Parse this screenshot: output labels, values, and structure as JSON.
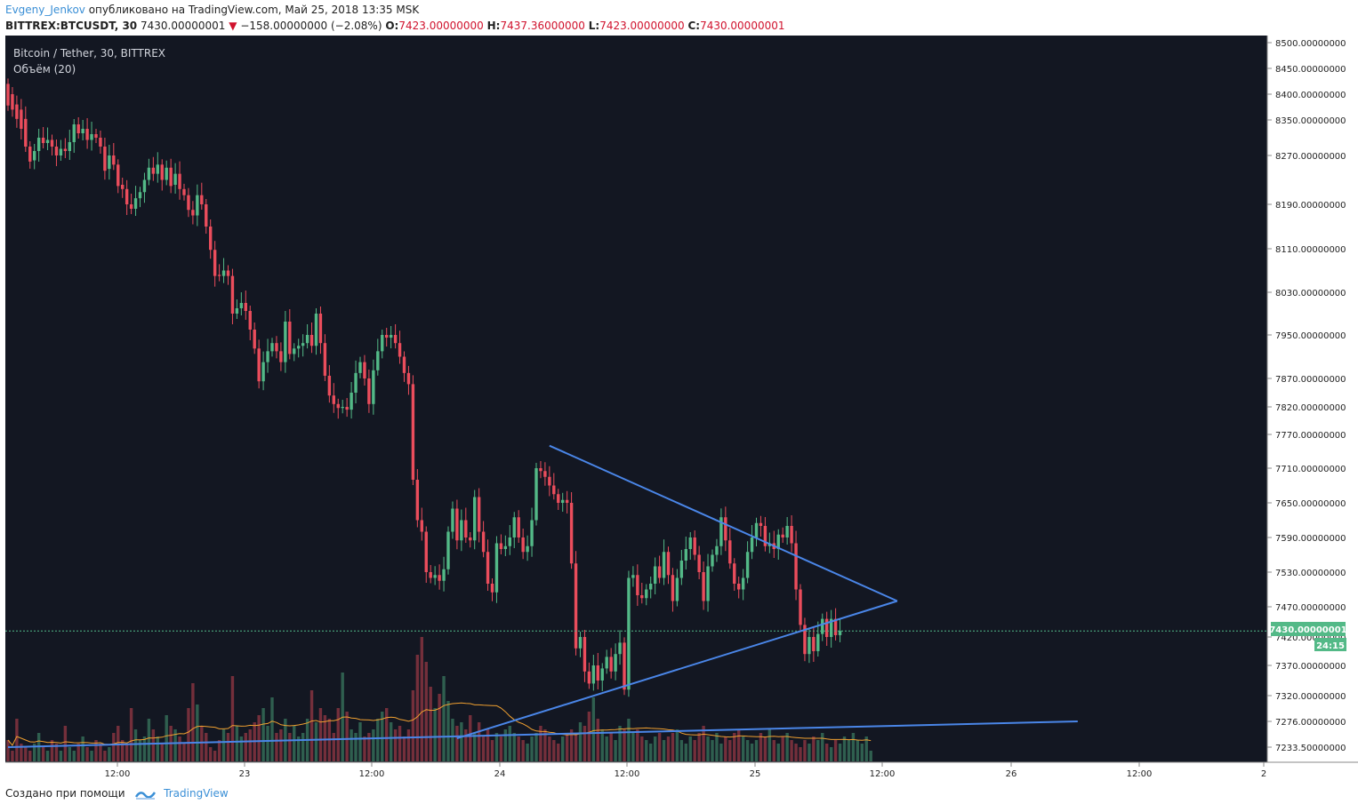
{
  "header": {
    "user": "Evgeny_Jenkov",
    "published": "опубликовано на TradingView.com, Май 25, 2018 13:35 MSK",
    "symbol": "BITTREX:BTCUSDT, 30",
    "last": "7430.00000001",
    "change": "−158.00000000 (−2.08%)",
    "o_label": "O:",
    "o_value": "7423.00000000",
    "h_label": "H:",
    "h_value": "7437.36000000",
    "l_label": "L:",
    "l_value": "7423.00000000",
    "c_label": "C:",
    "c_value": "7430.00000001"
  },
  "legend": {
    "title": "Bitcoin / Tether, 30, BITTREX",
    "volume": "Объём (20)"
  },
  "price_badge": "7430.00000001",
  "countdown": "24:15",
  "footer": {
    "created": "Создано при помощи",
    "brand": "TradingView"
  },
  "colors": {
    "background": "#131722",
    "up": "#53b987",
    "down": "#eb4d5c",
    "trendline": "#4a86e8",
    "volume_ma": "#f0a030",
    "price_line": "#53b987"
  },
  "chart_data": {
    "type": "candlestick",
    "y_axis_ticks": [
      "8500.00000000",
      "8450.00000000",
      "8400.00000000",
      "8350.00000000",
      "8270.00000000",
      "8190.00000000",
      "8110.00000000",
      "8030.00000000",
      "7950.00000000",
      "7870.00000000",
      "7820.00000000",
      "7770.00000000",
      "7710.00000000",
      "7650.00000000",
      "7590.00000000",
      "7530.00000000",
      "7470.00000000",
      "7420.00000000",
      "7370.00000000",
      "7320.00000000",
      "7276.00000000",
      "7233.50000000"
    ],
    "x_axis_ticks": [
      "12:00",
      "23",
      "12:00",
      "24",
      "12:00",
      "25",
      "12:00",
      "26",
      "12:00",
      "2"
    ],
    "last_price": 7430.00000001,
    "candles": [
      {
        "o": 8420,
        "c": 8378
      },
      {
        "o": 8400,
        "c": 8370
      },
      {
        "o": 8380,
        "c": 8352
      },
      {
        "o": 8370,
        "c": 8330
      },
      {
        "o": 8352,
        "c": 8290
      },
      {
        "o": 8290,
        "c": 8260
      },
      {
        "o": 8262,
        "c": 8280
      },
      {
        "o": 8280,
        "c": 8310
      },
      {
        "o": 8310,
        "c": 8298
      },
      {
        "o": 8298,
        "c": 8305
      },
      {
        "o": 8305,
        "c": 8290
      },
      {
        "o": 8290,
        "c": 8270
      },
      {
        "o": 8270,
        "c": 8285
      },
      {
        "o": 8285,
        "c": 8280
      },
      {
        "o": 8280,
        "c": 8300
      },
      {
        "o": 8300,
        "c": 8340
      },
      {
        "o": 8340,
        "c": 8320
      },
      {
        "o": 8320,
        "c": 8330
      },
      {
        "o": 8330,
        "c": 8305
      },
      {
        "o": 8305,
        "c": 8318
      },
      {
        "o": 8318,
        "c": 8310
      },
      {
        "o": 8310,
        "c": 8290
      },
      {
        "o": 8290,
        "c": 8245
      },
      {
        "o": 8248,
        "c": 8270
      },
      {
        "o": 8270,
        "c": 8255
      },
      {
        "o": 8255,
        "c": 8220
      },
      {
        "o": 8222,
        "c": 8215
      },
      {
        "o": 8215,
        "c": 8190
      },
      {
        "o": 8190,
        "c": 8182
      },
      {
        "o": 8182,
        "c": 8200
      },
      {
        "o": 8200,
        "c": 8210
      },
      {
        "o": 8210,
        "c": 8230
      },
      {
        "o": 8230,
        "c": 8250
      },
      {
        "o": 8250,
        "c": 8240
      },
      {
        "o": 8240,
        "c": 8255
      },
      {
        "o": 8255,
        "c": 8230
      },
      {
        "o": 8230,
        "c": 8250
      },
      {
        "o": 8250,
        "c": 8220
      },
      {
        "o": 8222,
        "c": 8240
      },
      {
        "o": 8240,
        "c": 8215
      },
      {
        "o": 8215,
        "c": 8205
      },
      {
        "o": 8205,
        "c": 8180
      },
      {
        "o": 8180,
        "c": 8170
      },
      {
        "o": 8170,
        "c": 8205
      },
      {
        "o": 8205,
        "c": 8190
      },
      {
        "o": 8190,
        "c": 8150
      },
      {
        "o": 8150,
        "c": 8108
      },
      {
        "o": 8108,
        "c": 8060
      },
      {
        "o": 8062,
        "c": 8060
      },
      {
        "o": 8060,
        "c": 8070
      },
      {
        "o": 8070,
        "c": 8060
      },
      {
        "o": 8060,
        "c": 7990
      },
      {
        "o": 7990,
        "c": 8000
      },
      {
        "o": 8000,
        "c": 8010
      },
      {
        "o": 8010,
        "c": 7995
      },
      {
        "o": 7995,
        "c": 7960
      },
      {
        "o": 7960,
        "c": 7925
      },
      {
        "o": 7925,
        "c": 7865
      },
      {
        "o": 7865,
        "c": 7900
      },
      {
        "o": 7900,
        "c": 7920
      },
      {
        "o": 7920,
        "c": 7935
      },
      {
        "o": 7935,
        "c": 7920
      },
      {
        "o": 7920,
        "c": 7900
      },
      {
        "o": 7900,
        "c": 7975
      },
      {
        "o": 7975,
        "c": 7915
      },
      {
        "o": 7915,
        "c": 7925
      },
      {
        "o": 7925,
        "c": 7930
      },
      {
        "o": 7930,
        "c": 7935
      },
      {
        "o": 7935,
        "c": 7950
      },
      {
        "o": 7950,
        "c": 7930
      },
      {
        "o": 7930,
        "c": 7990
      },
      {
        "o": 7990,
        "c": 7935
      },
      {
        "o": 7935,
        "c": 7875
      },
      {
        "o": 7875,
        "c": 7840
      },
      {
        "o": 7840,
        "c": 7825
      },
      {
        "o": 7825,
        "c": 7818
      },
      {
        "o": 7818,
        "c": 7820
      },
      {
        "o": 7820,
        "c": 7815
      },
      {
        "o": 7815,
        "c": 7845
      },
      {
        "o": 7845,
        "c": 7880
      },
      {
        "o": 7880,
        "c": 7900
      },
      {
        "o": 7900,
        "c": 7870
      },
      {
        "o": 7870,
        "c": 7825
      },
      {
        "o": 7825,
        "c": 7885
      },
      {
        "o": 7885,
        "c": 7920
      },
      {
        "o": 7920,
        "c": 7950
      },
      {
        "o": 7950,
        "c": 7945
      },
      {
        "o": 7945,
        "c": 7950
      },
      {
        "o": 7950,
        "c": 7935
      },
      {
        "o": 7935,
        "c": 7910
      },
      {
        "o": 7910,
        "c": 7880
      },
      {
        "o": 7880,
        "c": 7860
      },
      {
        "o": 7860,
        "c": 7690
      },
      {
        "o": 7690,
        "c": 7620
      },
      {
        "o": 7620,
        "c": 7600
      },
      {
        "o": 7600,
        "c": 7530
      },
      {
        "o": 7530,
        "c": 7520
      },
      {
        "o": 7520,
        "c": 7525
      },
      {
        "o": 7525,
        "c": 7515
      },
      {
        "o": 7515,
        "c": 7535
      },
      {
        "o": 7535,
        "c": 7600
      },
      {
        "o": 7600,
        "c": 7640
      },
      {
        "o": 7640,
        "c": 7585
      },
      {
        "o": 7585,
        "c": 7620
      },
      {
        "o": 7620,
        "c": 7590
      },
      {
        "o": 7590,
        "c": 7585
      },
      {
        "o": 7585,
        "c": 7660
      },
      {
        "o": 7660,
        "c": 7600
      },
      {
        "o": 7600,
        "c": 7565
      },
      {
        "o": 7565,
        "c": 7510
      },
      {
        "o": 7510,
        "c": 7495
      },
      {
        "o": 7495,
        "c": 7580
      },
      {
        "o": 7580,
        "c": 7570
      },
      {
        "o": 7570,
        "c": 7575
      },
      {
        "o": 7575,
        "c": 7590
      },
      {
        "o": 7590,
        "c": 7625
      },
      {
        "o": 7625,
        "c": 7590
      },
      {
        "o": 7590,
        "c": 7565
      },
      {
        "o": 7565,
        "c": 7575
      },
      {
        "o": 7575,
        "c": 7620
      },
      {
        "o": 7620,
        "c": 7710
      },
      {
        "o": 7710,
        "c": 7705
      },
      {
        "o": 7705,
        "c": 7695
      },
      {
        "o": 7695,
        "c": 7680
      },
      {
        "o": 7680,
        "c": 7665
      },
      {
        "o": 7665,
        "c": 7650
      },
      {
        "o": 7650,
        "c": 7655
      },
      {
        "o": 7655,
        "c": 7650
      },
      {
        "o": 7650,
        "c": 7545
      },
      {
        "o": 7545,
        "c": 7400
      },
      {
        "o": 7400,
        "c": 7420
      },
      {
        "o": 7420,
        "c": 7360
      },
      {
        "o": 7360,
        "c": 7340
      },
      {
        "o": 7340,
        "c": 7370
      },
      {
        "o": 7370,
        "c": 7345
      },
      {
        "o": 7345,
        "c": 7365
      },
      {
        "o": 7365,
        "c": 7385
      },
      {
        "o": 7385,
        "c": 7360
      },
      {
        "o": 7360,
        "c": 7390
      },
      {
        "o": 7390,
        "c": 7410
      },
      {
        "o": 7410,
        "c": 7330
      },
      {
        "o": 7330,
        "c": 7520
      },
      {
        "o": 7520,
        "c": 7525
      },
      {
        "o": 7525,
        "c": 7490
      },
      {
        "o": 7490,
        "c": 7485
      },
      {
        "o": 7485,
        "c": 7500
      },
      {
        "o": 7500,
        "c": 7510
      },
      {
        "o": 7510,
        "c": 7540
      },
      {
        "o": 7540,
        "c": 7520
      },
      {
        "o": 7520,
        "c": 7565
      },
      {
        "o": 7565,
        "c": 7525
      },
      {
        "o": 7525,
        "c": 7480
      },
      {
        "o": 7480,
        "c": 7520
      },
      {
        "o": 7520,
        "c": 7550
      },
      {
        "o": 7550,
        "c": 7570
      },
      {
        "o": 7570,
        "c": 7590
      },
      {
        "o": 7590,
        "c": 7560
      },
      {
        "o": 7560,
        "c": 7530
      },
      {
        "o": 7530,
        "c": 7480
      },
      {
        "o": 7480,
        "c": 7540
      },
      {
        "o": 7540,
        "c": 7560
      },
      {
        "o": 7560,
        "c": 7575
      },
      {
        "o": 7575,
        "c": 7625
      },
      {
        "o": 7625,
        "c": 7585
      },
      {
        "o": 7585,
        "c": 7545
      },
      {
        "o": 7545,
        "c": 7510
      },
      {
        "o": 7510,
        "c": 7500
      },
      {
        "o": 7500,
        "c": 7520
      },
      {
        "o": 7520,
        "c": 7565
      },
      {
        "o": 7565,
        "c": 7590
      },
      {
        "o": 7590,
        "c": 7615
      },
      {
        "o": 7615,
        "c": 7610
      },
      {
        "o": 7610,
        "c": 7575
      },
      {
        "o": 7575,
        "c": 7580
      },
      {
        "o": 7580,
        "c": 7570
      },
      {
        "o": 7570,
        "c": 7595
      },
      {
        "o": 7595,
        "c": 7590
      },
      {
        "o": 7590,
        "c": 7610
      },
      {
        "o": 7610,
        "c": 7580
      },
      {
        "o": 7580,
        "c": 7500
      },
      {
        "o": 7500,
        "c": 7440
      },
      {
        "o": 7440,
        "c": 7390
      },
      {
        "o": 7390,
        "c": 7420
      },
      {
        "o": 7420,
        "c": 7395
      },
      {
        "o": 7395,
        "c": 7425
      },
      {
        "o": 7425,
        "c": 7450
      },
      {
        "o": 7450,
        "c": 7420
      },
      {
        "o": 7420,
        "c": 7450
      },
      {
        "o": 7450,
        "c": 7423
      },
      {
        "o": 7423,
        "c": 7430
      }
    ],
    "volume": [
      12,
      6,
      24,
      10,
      8,
      6,
      10,
      16,
      8,
      6,
      12,
      10,
      6,
      20,
      8,
      6,
      10,
      14,
      8,
      6,
      12,
      10,
      6,
      8,
      16,
      20,
      12,
      10,
      30,
      18,
      12,
      14,
      24,
      18,
      14,
      10,
      26,
      20,
      18,
      14,
      10,
      30,
      44,
      32,
      20,
      16,
      8,
      6,
      12,
      18,
      16,
      48,
      20,
      14,
      16,
      18,
      22,
      26,
      30,
      20,
      36,
      16,
      18,
      24,
      16,
      20,
      14,
      16,
      24,
      40,
      22,
      30,
      26,
      24,
      16,
      30,
      50,
      28,
      18,
      16,
      22,
      14,
      16,
      18,
      24,
      28,
      30,
      22,
      18,
      20,
      14,
      18,
      40,
      60,
      70,
      56,
      42,
      30,
      38,
      48,
      34,
      24,
      20,
      22,
      18,
      26,
      16,
      22,
      14,
      18,
      12,
      16,
      14,
      18,
      20,
      16,
      14,
      12,
      10,
      14,
      16,
      20,
      18,
      14,
      12,
      10,
      14,
      16,
      18,
      16,
      22,
      20,
      28,
      36,
      24,
      18,
      14,
      16,
      12,
      20,
      18,
      24,
      16,
      18,
      14,
      12,
      10,
      14,
      16,
      12,
      14,
      16,
      18,
      12,
      10,
      14,
      12,
      16,
      20,
      14,
      12,
      16,
      10,
      14,
      12,
      16,
      18,
      14,
      12,
      10,
      12,
      16,
      14,
      18,
      12,
      10,
      14,
      16,
      12,
      10,
      8,
      12,
      10,
      14,
      12,
      16,
      10,
      8,
      12,
      10,
      14,
      12,
      16,
      12,
      10,
      14,
      6
    ],
    "trendlines": [
      {
        "name": "upper",
        "from": [
          123,
          7750
        ],
        "to": [
          202,
          7480
        ]
      },
      {
        "name": "lower",
        "from": [
          102,
          7248
        ],
        "to": [
          202,
          7480
        ]
      },
      {
        "name": "support",
        "from": [
          0,
          7233.5
        ],
        "to": [
          243,
          7276
        ]
      }
    ]
  }
}
